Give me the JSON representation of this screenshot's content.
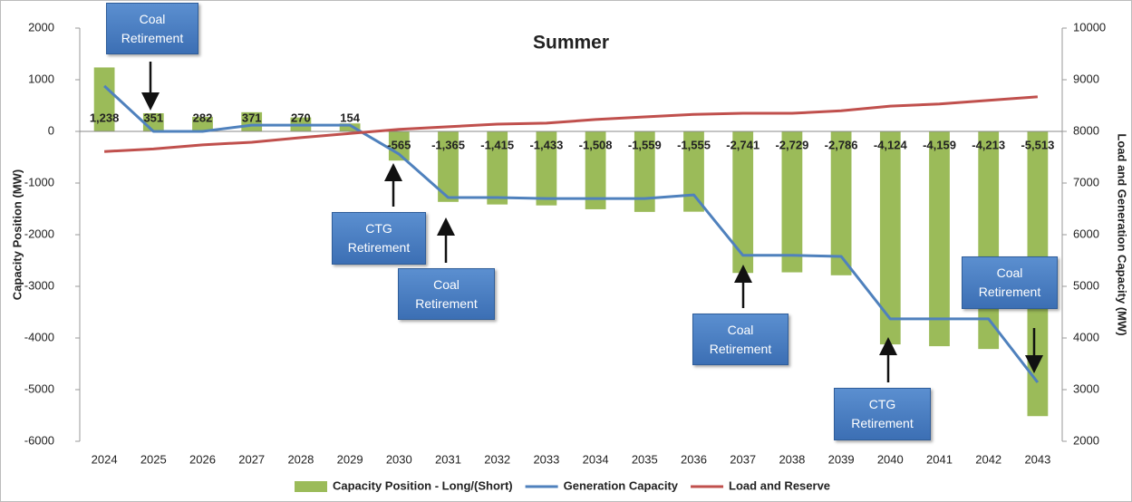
{
  "chart_data": {
    "type": "combo",
    "title": "Summer",
    "y_label": "Capacity Position (MW)",
    "y2_label": "Load and Generation Capacity (MW)",
    "categories": [
      "2024",
      "2025",
      "2026",
      "2027",
      "2028",
      "2029",
      "2030",
      "2031",
      "2032",
      "2033",
      "2034",
      "2035",
      "2036",
      "2037",
      "2038",
      "2039",
      "2040",
      "2041",
      "2042",
      "2043"
    ],
    "series": [
      {
        "name": "Capacity Position - Long/(Short)",
        "type": "bar",
        "color": "#9bbb59",
        "values": [
          1238,
          351,
          282,
          371,
          270,
          154,
          -565,
          -1365,
          -1415,
          -1433,
          -1508,
          -1559,
          -1555,
          -2741,
          -2729,
          -2786,
          -4124,
          -4159,
          -4213,
          -5513
        ],
        "value_labels": [
          "1,238",
          "351",
          "282",
          "371",
          "270",
          "154",
          "-565",
          "-1,365",
          "-1,415",
          "-1,433",
          "-1,508",
          "-1,559",
          "-1,555",
          "-2,741",
          "-2,729",
          "-2,786",
          "-4,124",
          "-4,159",
          "-4,213",
          "-5,513"
        ]
      },
      {
        "name": "Generation Capacity",
        "type": "line",
        "axis": "y2",
        "color": "#4f81bd",
        "values": [
          8880,
          8000,
          8000,
          8120,
          8120,
          8120,
          7560,
          6720,
          6720,
          6700,
          6700,
          6700,
          6770,
          5600,
          5600,
          5580,
          4370,
          4370,
          4370,
          3140
        ]
      },
      {
        "name": "Load and Reserve",
        "type": "line",
        "axis": "y2",
        "color": "#c0504d",
        "values": [
          7610,
          7660,
          7740,
          7790,
          7880,
          7960,
          8040,
          8090,
          8140,
          8160,
          8230,
          8280,
          8330,
          8350,
          8350,
          8400,
          8490,
          8530,
          8600,
          8670
        ]
      }
    ],
    "ylim": [
      -6000,
      2000
    ],
    "yticks": [
      -6000,
      -5000,
      -4000,
      -3000,
      -2000,
      -1000,
      0,
      1000,
      2000
    ],
    "y2lim": [
      2000,
      10000
    ],
    "y2ticks": [
      2000,
      3000,
      4000,
      5000,
      6000,
      7000,
      8000,
      9000,
      10000
    ],
    "legend": "bottom",
    "annotations": [
      "Coal Retirement",
      "CTG Retirement",
      "Coal Retirement",
      "Coal Retirement",
      "CTG Retirement",
      "Coal Retirement"
    ]
  }
}
